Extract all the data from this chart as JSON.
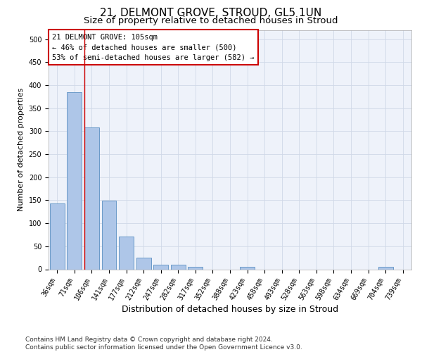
{
  "title1": "21, DELMONT GROVE, STROUD, GL5 1UN",
  "title2": "Size of property relative to detached houses in Stroud",
  "xlabel": "Distribution of detached houses by size in Stroud",
  "ylabel": "Number of detached properties",
  "bin_labels": [
    "36sqm",
    "71sqm",
    "106sqm",
    "141sqm",
    "177sqm",
    "212sqm",
    "247sqm",
    "282sqm",
    "317sqm",
    "352sqm",
    "388sqm",
    "423sqm",
    "458sqm",
    "493sqm",
    "528sqm",
    "563sqm",
    "598sqm",
    "634sqm",
    "669sqm",
    "704sqm",
    "739sqm"
  ],
  "bar_values": [
    143,
    384,
    308,
    149,
    71,
    25,
    10,
    10,
    6,
    0,
    0,
    5,
    0,
    0,
    0,
    0,
    0,
    0,
    0,
    5,
    0
  ],
  "bar_color": "#aec6e8",
  "bar_edgecolor": "#5a8fc2",
  "vline_color": "#cc0000",
  "vline_x_index": 2,
  "annotation_text": "21 DELMONT GROVE: 105sqm\n← 46% of detached houses are smaller (500)\n53% of semi-detached houses are larger (582) →",
  "annotation_box_facecolor": "#ffffff",
  "annotation_box_edgecolor": "#cc0000",
  "ylim": [
    0,
    520
  ],
  "yticks": [
    0,
    50,
    100,
    150,
    200,
    250,
    300,
    350,
    400,
    450,
    500
  ],
  "grid_color": "#d0d8e8",
  "background_color": "#eef2fa",
  "footer_text": "Contains HM Land Registry data © Crown copyright and database right 2024.\nContains public sector information licensed under the Open Government Licence v3.0.",
  "title1_fontsize": 11,
  "title2_fontsize": 9.5,
  "xlabel_fontsize": 9,
  "ylabel_fontsize": 8,
  "tick_fontsize": 7,
  "annotation_fontsize": 7.5,
  "footer_fontsize": 6.5
}
